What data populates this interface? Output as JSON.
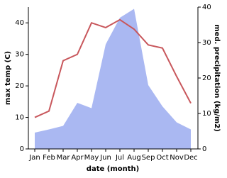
{
  "chart_data": {
    "type": "line-area",
    "xlabel": "date (month)",
    "ylabel": "max temp (C)",
    "y2label": "med. precipitation (kg/m2)",
    "categories": [
      "Jan",
      "Feb",
      "Mar",
      "Apr",
      "May",
      "Jun",
      "Jul",
      "Aug",
      "Sep",
      "Oct",
      "Nov",
      "Dec"
    ],
    "series": [
      {
        "name": "max temp",
        "type": "line",
        "color": "#c8575c",
        "values": [
          10,
          12,
          28,
          30,
          40,
          38.5,
          41,
          38,
          33,
          32,
          23,
          14.5
        ]
      },
      {
        "name": "med. precipitation",
        "type": "area",
        "axis": "y2",
        "color": "#aab8f2",
        "values": [
          4.6,
          5.5,
          6.5,
          13,
          11.5,
          29.5,
          37,
          39.5,
          18,
          12,
          7.5,
          5.5
        ]
      }
    ],
    "ylim": [
      0,
      45
    ],
    "yticks": [
      0,
      10,
      20,
      30,
      40
    ],
    "y2lim": [
      0,
      40
    ],
    "y2ticks": [
      0,
      10,
      20,
      30,
      40
    ]
  }
}
